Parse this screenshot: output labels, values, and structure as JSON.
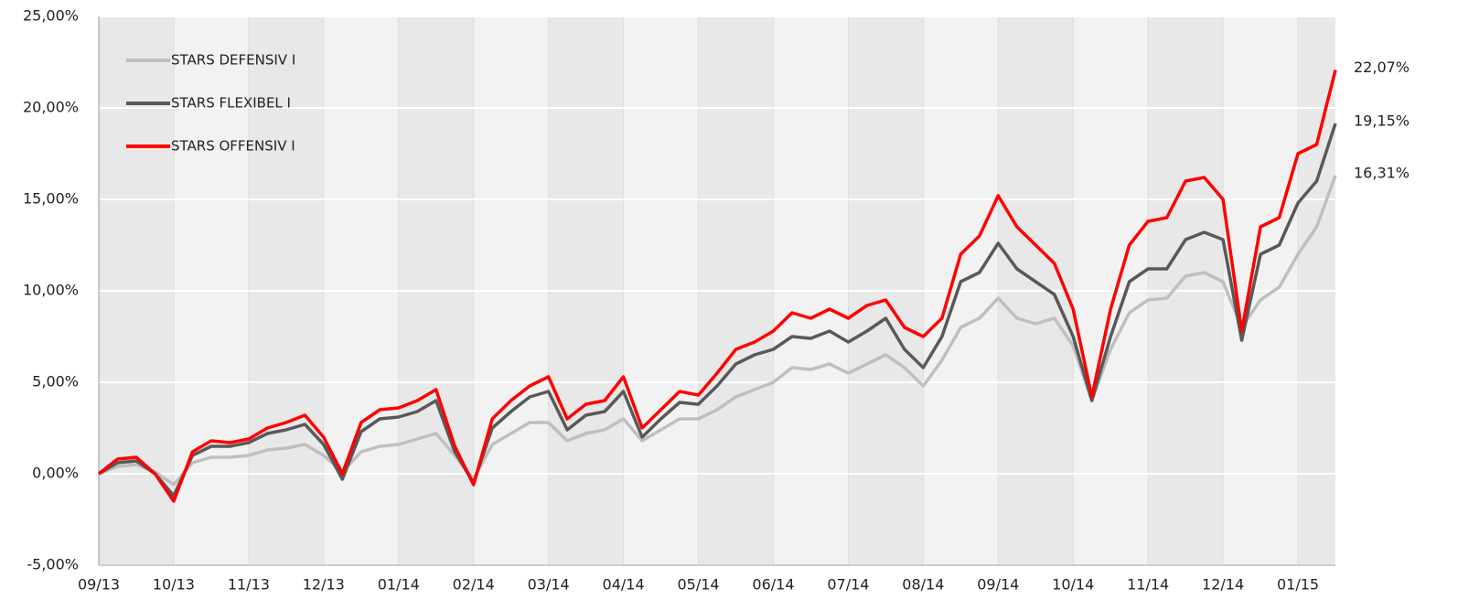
{
  "chart_data": {
    "type": "line",
    "ylim": [
      -5,
      25
    ],
    "yticks": [
      {
        "value": -5,
        "label": "-5,00%"
      },
      {
        "value": 0,
        "label": "0,00%"
      },
      {
        "value": 5,
        "label": "5,00%"
      },
      {
        "value": 10,
        "label": "10,00%"
      },
      {
        "value": 15,
        "label": "15,00%"
      },
      {
        "value": 20,
        "label": "20,00%"
      },
      {
        "value": 25,
        "label": "25,00%"
      }
    ],
    "xlim": [
      0,
      16.5
    ],
    "xticks": [
      {
        "value": 0,
        "label": "09/13"
      },
      {
        "value": 1,
        "label": "10/13"
      },
      {
        "value": 2,
        "label": "11/13"
      },
      {
        "value": 3,
        "label": "12/13"
      },
      {
        "value": 4,
        "label": "01/14"
      },
      {
        "value": 5,
        "label": "02/14"
      },
      {
        "value": 6,
        "label": "03/14"
      },
      {
        "value": 7,
        "label": "04/14"
      },
      {
        "value": 8,
        "label": "05/14"
      },
      {
        "value": 9,
        "label": "06/14"
      },
      {
        "value": 10,
        "label": "07/14"
      },
      {
        "value": 11,
        "label": "08/14"
      },
      {
        "value": 12,
        "label": "09/14"
      },
      {
        "value": 13,
        "label": "10/14"
      },
      {
        "value": 14,
        "label": "11/14"
      },
      {
        "value": 15,
        "label": "12/14"
      },
      {
        "value": 16,
        "label": "01/15"
      }
    ],
    "grid": true,
    "legend": "upper left",
    "x": [
      0,
      0.25,
      0.5,
      0.75,
      1,
      1.25,
      1.5,
      1.75,
      2,
      2.25,
      2.5,
      2.75,
      3,
      3.25,
      3.5,
      3.75,
      4,
      4.25,
      4.5,
      4.75,
      5,
      5.25,
      5.5,
      5.75,
      6,
      6.25,
      6.5,
      6.75,
      7,
      7.25,
      7.5,
      7.75,
      8,
      8.25,
      8.5,
      8.75,
      9,
      9.25,
      9.5,
      9.75,
      10,
      10.25,
      10.5,
      10.75,
      11,
      11.25,
      11.5,
      11.75,
      12,
      12.25,
      12.5,
      12.75,
      13,
      13.25,
      13.5,
      13.75,
      14,
      14.25,
      14.5,
      14.75,
      15,
      15.25,
      15.5,
      15.75,
      16,
      16.25,
      16.5
    ],
    "series": [
      {
        "name": "STARS DEFENSIV I",
        "color": "#bfbfbf",
        "end_label": "16,31%",
        "values": [
          0,
          0.4,
          0.5,
          0.1,
          -0.6,
          0.6,
          0.9,
          0.9,
          1.0,
          1.3,
          1.4,
          1.6,
          1.0,
          0.1,
          1.2,
          1.5,
          1.6,
          1.9,
          2.2,
          1.0,
          -0.3,
          1.6,
          2.2,
          2.8,
          2.8,
          1.8,
          2.2,
          2.4,
          3.0,
          1.8,
          2.4,
          3.0,
          3.0,
          3.5,
          4.2,
          4.6,
          5.0,
          5.8,
          5.7,
          6.0,
          5.5,
          6.0,
          6.5,
          5.8,
          4.8,
          6.2,
          8.0,
          8.5,
          9.6,
          8.5,
          8.2,
          8.5,
          7.0,
          4.0,
          6.8,
          8.8,
          9.5,
          9.6,
          10.8,
          11.0,
          10.5,
          8.0,
          9.5,
          10.2,
          12.0,
          13.5,
          16.31
        ]
      },
      {
        "name": "STARS FLEXIBEL I",
        "color": "#595959",
        "end_label": "19,15%",
        "values": [
          0,
          0.6,
          0.7,
          0.0,
          -1.2,
          1.0,
          1.5,
          1.5,
          1.7,
          2.2,
          2.4,
          2.7,
          1.6,
          -0.3,
          2.3,
          3.0,
          3.1,
          3.4,
          4.0,
          1.2,
          -0.5,
          2.5,
          3.4,
          4.2,
          4.5,
          2.4,
          3.2,
          3.4,
          4.5,
          2.0,
          3.0,
          3.9,
          3.8,
          4.8,
          6.0,
          6.5,
          6.8,
          7.5,
          7.4,
          7.8,
          7.2,
          7.8,
          8.5,
          6.8,
          5.8,
          7.5,
          10.5,
          11.0,
          12.6,
          11.2,
          10.5,
          9.8,
          7.5,
          4.0,
          7.5,
          10.5,
          11.2,
          11.2,
          12.8,
          13.2,
          12.8,
          7.3,
          12.0,
          12.5,
          14.8,
          16.0,
          19.15
        ]
      },
      {
        "name": "STARS OFFENSIV I",
        "color": "#ff0000",
        "end_label": "22,07%",
        "values": [
          0,
          0.8,
          0.9,
          0.0,
          -1.5,
          1.2,
          1.8,
          1.7,
          1.9,
          2.5,
          2.8,
          3.2,
          2.0,
          0.0,
          2.8,
          3.5,
          3.6,
          4.0,
          4.6,
          1.5,
          -0.6,
          3.0,
          4.0,
          4.8,
          5.3,
          3.0,
          3.8,
          4.0,
          5.3,
          2.5,
          3.5,
          4.5,
          4.3,
          5.5,
          6.8,
          7.2,
          7.8,
          8.8,
          8.5,
          9.0,
          8.5,
          9.2,
          9.5,
          8.0,
          7.5,
          8.5,
          12.0,
          13.0,
          15.2,
          13.5,
          12.5,
          11.5,
          9.0,
          4.2,
          9.0,
          12.5,
          13.8,
          14.0,
          16.0,
          16.2,
          15.0,
          7.8,
          13.5,
          14.0,
          17.5,
          18.0,
          22.07
        ]
      }
    ]
  }
}
